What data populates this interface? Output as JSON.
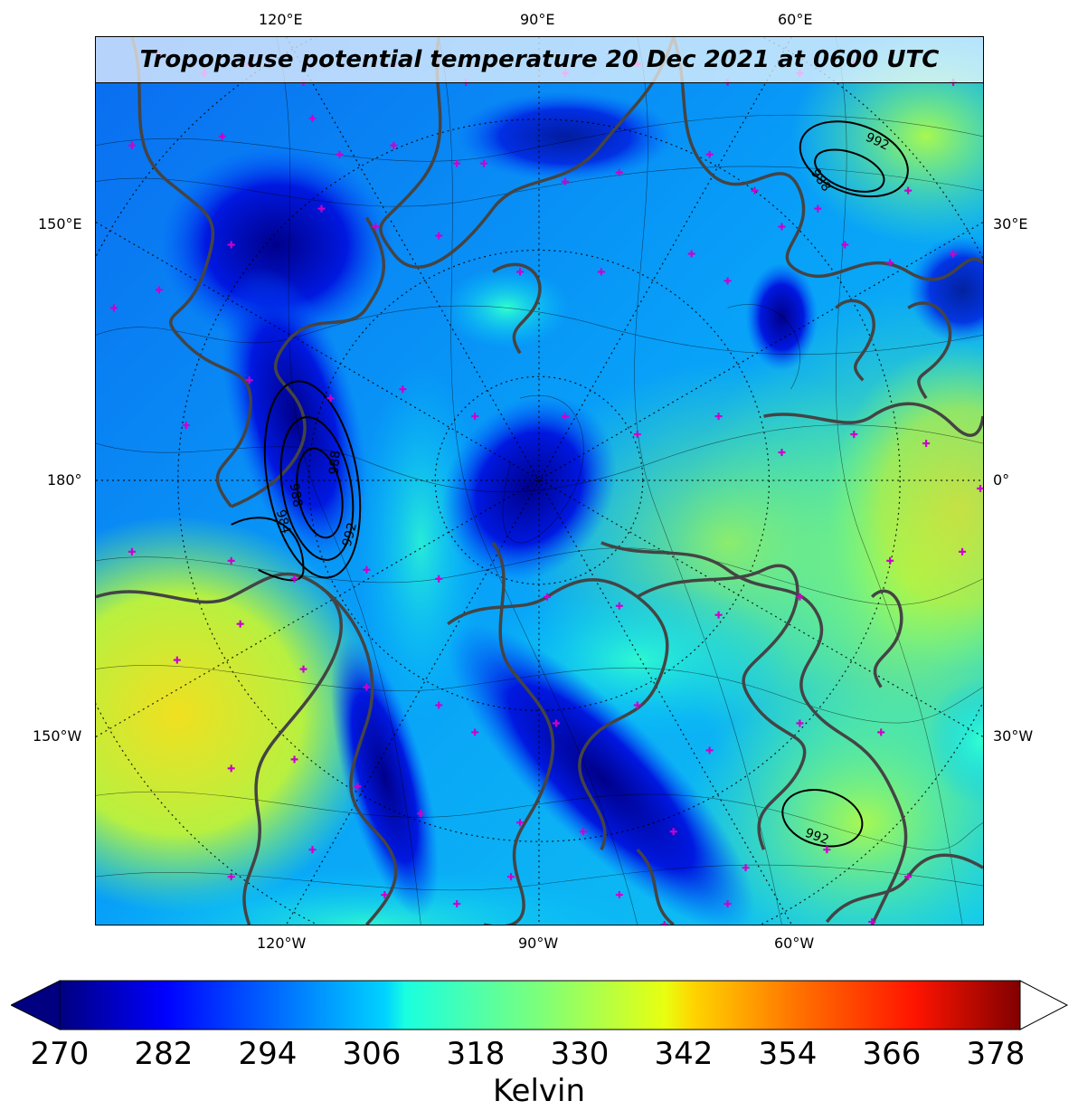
{
  "map": {
    "title": "Tropopause potential temperature 20 Dec 2021 at 0600 UTC",
    "lon_labels": {
      "top": [
        "120°E",
        "90°E",
        "60°E"
      ],
      "bottom": [
        "120°W",
        "90°W",
        "60°W"
      ],
      "left": [
        "150°E",
        "180°",
        "150°W"
      ],
      "right": [
        "30°E",
        "0°",
        "30°W"
      ]
    },
    "pressure_contour_labels": [
      "992",
      "988",
      "988",
      "992",
      "988",
      "984",
      "992"
    ],
    "colors": {
      "coastline": "#444444",
      "station_marker": "#cc00cc",
      "contour": "#000000"
    }
  },
  "colorbar": {
    "ticks": [
      "270",
      "282",
      "294",
      "306",
      "318",
      "330",
      "342",
      "354",
      "366",
      "378"
    ],
    "label": "Kelvin",
    "min": 270,
    "max": 381,
    "extend": "both",
    "colormap": "jet"
  }
}
